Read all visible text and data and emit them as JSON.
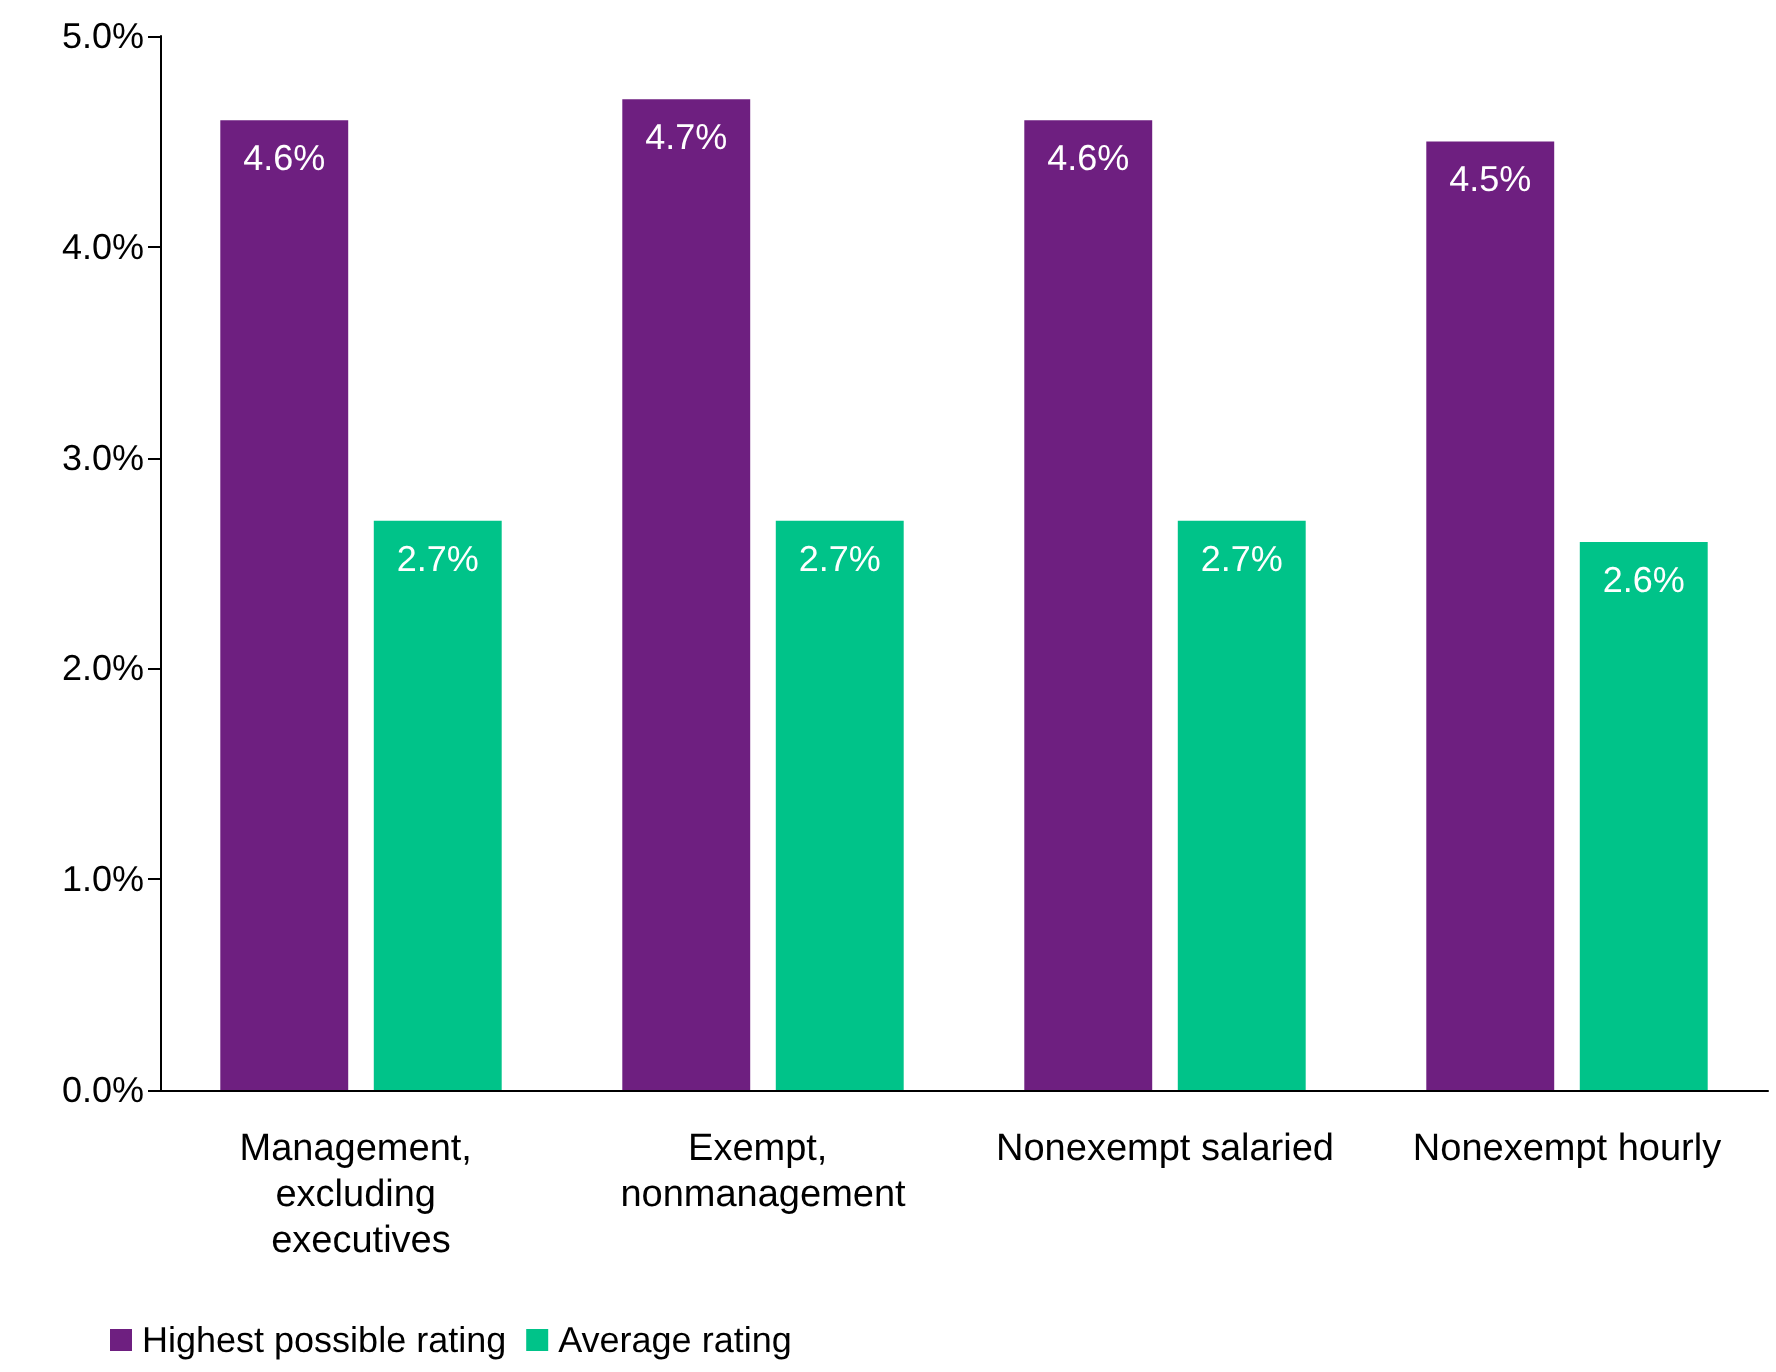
{
  "chart_data": {
    "type": "bar",
    "categories": [
      "Management, excluding executives",
      "Exempt, nonmanagement",
      "Nonexempt salaried",
      "Nonexempt hourly"
    ],
    "series": [
      {
        "name": "Highest possible rating",
        "color": "#6e1f80",
        "values": [
          4.6,
          4.7,
          4.6,
          4.5
        ],
        "value_labels": [
          "4.6%",
          "4.7%",
          "4.6%",
          "4.5%"
        ]
      },
      {
        "name": "Average rating",
        "color": "#00c389",
        "values": [
          2.7,
          2.7,
          2.7,
          2.6
        ],
        "value_labels": [
          "2.7%",
          "2.7%",
          "2.7%",
          "2.6%"
        ]
      }
    ],
    "ylim": [
      0,
      5
    ],
    "yticks": [
      {
        "value": 0,
        "label": "0.0%"
      },
      {
        "value": 1,
        "label": "1.0%"
      },
      {
        "value": 2,
        "label": "2.0%"
      },
      {
        "value": 3,
        "label": "3.0%"
      },
      {
        "value": 4,
        "label": "4.0%"
      },
      {
        "value": 5,
        "label": "5.0%"
      }
    ],
    "grid": false,
    "legend": "bottom left"
  }
}
